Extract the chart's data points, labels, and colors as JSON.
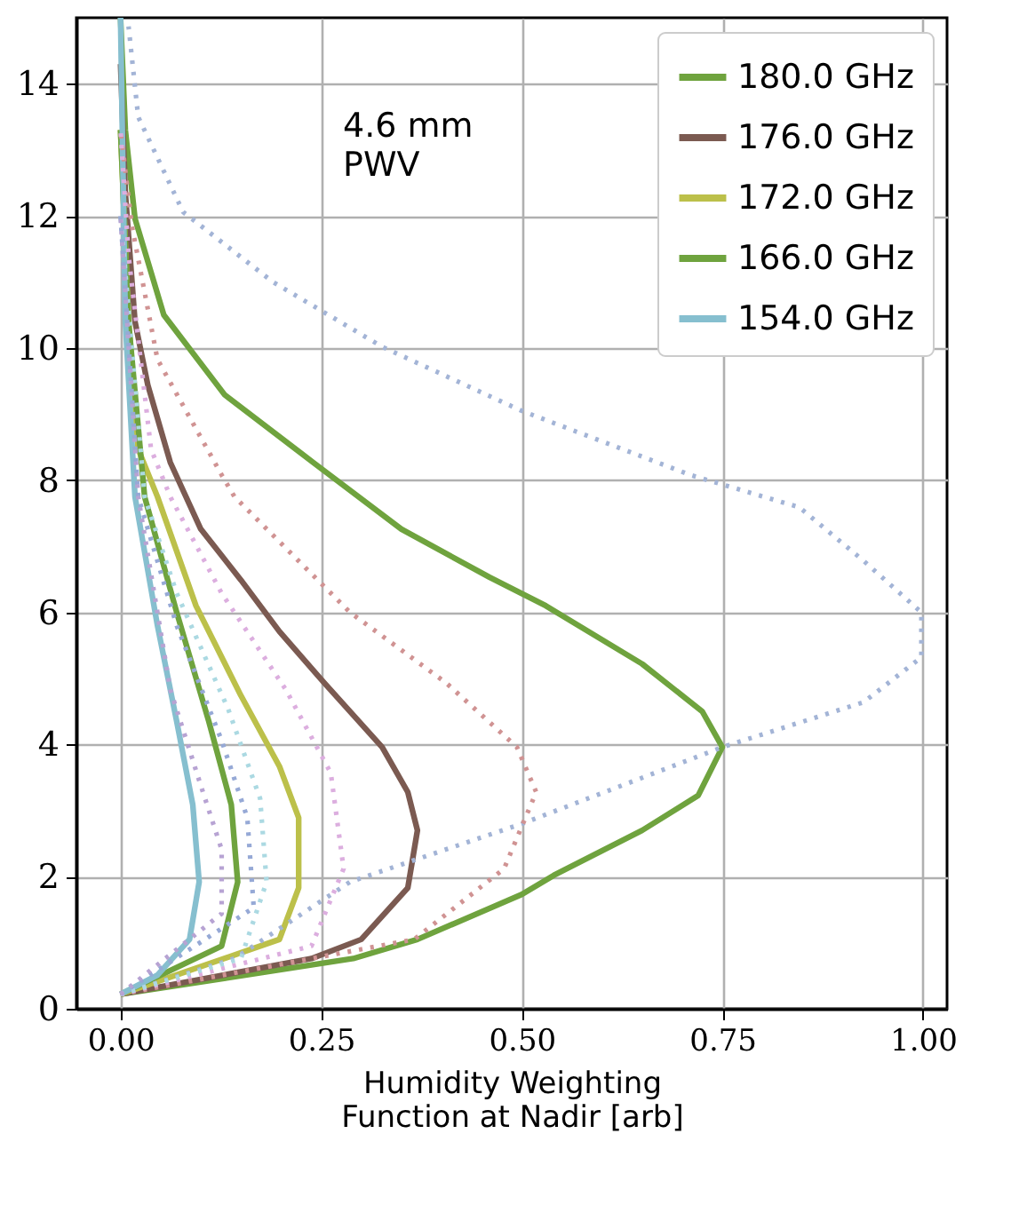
{
  "chart_data": {
    "type": "line",
    "xlabel": "Humidity Weighting\nFunction at Nadir [arb]",
    "annotations": [
      "4.6 mm\nPWV"
    ],
    "xlim": [
      -0.055,
      1.03
    ],
    "ylim": [
      0,
      15
    ],
    "xticks": [
      {
        "value": 0,
        "label": "0.00"
      },
      {
        "value": 0.25,
        "label": "0.25"
      },
      {
        "value": 0.5,
        "label": "0.50"
      },
      {
        "value": 0.75,
        "label": "0.75"
      },
      {
        "value": 1,
        "label": "1.00"
      }
    ],
    "yticks": [
      0,
      2,
      4,
      6,
      8,
      10,
      12,
      14
    ],
    "grid": true,
    "legend": "top right",
    "marker": "none",
    "series": [
      {
        "name": "180.0 GHz",
        "color": "#6fa33e",
        "line_style": "solid",
        "x": [
          0,
          0.29,
          0.37,
          0.5,
          0.54,
          0.65,
          0.72,
          0.75,
          0.725,
          0.65,
          0.53,
          0.46,
          0.35,
          0.24,
          0.13,
          0.054,
          0.018,
          0.006,
          0
        ],
        "values": [
          0.22,
          0.76,
          1.05,
          1.73,
          2.02,
          2.7,
          3.23,
          3.96,
          4.5,
          5.22,
          6.1,
          6.53,
          7.26,
          8.27,
          9.29,
          10.5,
          11.96,
          13.3,
          15
        ]
      },
      {
        "name": "176.0 GHz",
        "color": "#7b5a51",
        "line_style": "solid",
        "x": [
          0,
          0.238,
          0.3,
          0.358,
          0.37,
          0.358,
          0.326,
          0.254,
          0.198,
          0.15,
          0.1,
          0.062,
          0.034,
          0.018,
          0.006,
          0
        ],
        "values": [
          0.22,
          0.76,
          1.05,
          1.83,
          2.7,
          3.28,
          3.96,
          4.93,
          5.71,
          6.49,
          7.26,
          8.27,
          9.44,
          10.4,
          12.35,
          14.3
        ]
      },
      {
        "name": "172.0 GHz",
        "color": "#bcc04a",
        "line_style": "solid",
        "x": [
          0,
          0.198,
          0.222,
          0.222,
          0.198,
          0.15,
          0.094,
          0.046,
          0.022,
          0.01,
          0
        ],
        "values": [
          0.22,
          1.05,
          1.83,
          2.89,
          3.67,
          4.74,
          6.1,
          7.75,
          8.47,
          10.4,
          13.3
        ]
      },
      {
        "name": "166.0 GHz",
        "color": "#6fa33e",
        "line_style": "solid",
        "x": [
          0,
          0.126,
          0.146,
          0.138,
          0.11,
          0.07,
          0.03,
          0.01,
          0
        ],
        "values": [
          0.22,
          0.95,
          1.92,
          3.09,
          4.35,
          6,
          7.75,
          10.4,
          13.3
        ]
      },
      {
        "name": "154.0 GHz",
        "color": "#86bfcf",
        "line_style": "solid",
        "x": [
          0,
          0.046,
          0.086,
          0.098,
          0.09,
          0.07,
          0.046,
          0.018,
          0.006,
          0
        ],
        "values": [
          0.22,
          0.51,
          1.05,
          1.92,
          3.09,
          4.35,
          5.8,
          7.75,
          10.4,
          15
        ]
      },
      {
        "color": "#a3b4d6",
        "line_style": "dotted",
        "x": [
          0,
          0.142,
          0.286,
          0.5,
          0.75,
          0.926,
          0.998,
          0.998,
          0.926,
          0.846,
          0.71,
          0.5,
          0.326,
          0.19,
          0.078,
          0.022,
          0.01
        ],
        "values": [
          0.22,
          0.76,
          1.92,
          2.8,
          3.96,
          4.64,
          5.32,
          6,
          6.78,
          7.59,
          8.08,
          9.05,
          10.02,
          11,
          12.06,
          13.5,
          14.87
        ]
      },
      {
        "color": "#d09393",
        "line_style": "dotted",
        "x": [
          0,
          0.366,
          0.478,
          0.518,
          0.494,
          0.406,
          0.286,
          0.142,
          0.126,
          0.046,
          0.014,
          0
        ],
        "values": [
          0.22,
          1.05,
          2.12,
          3.28,
          3.96,
          4.93,
          6,
          7.75,
          8.08,
          9.83,
          11.86,
          13.3
        ]
      },
      {
        "color": "#dcaedf",
        "line_style": "dotted",
        "x": [
          0,
          0.238,
          0.278,
          0.262,
          0.206,
          0.126,
          0.062,
          0.038,
          0.01,
          0
        ],
        "values": [
          0.22,
          0.95,
          2.12,
          3.57,
          4.83,
          6.29,
          7.75,
          8.47,
          11.4,
          13.3
        ]
      },
      {
        "color": "#abd9e2",
        "line_style": "dotted",
        "x": [
          0,
          0.15,
          0.182,
          0.174,
          0.134,
          0.07,
          0.03,
          0
        ],
        "values": [
          0.22,
          0.76,
          1.92,
          3.18,
          4.54,
          6.29,
          7.75,
          12
        ]
      },
      {
        "color": "#96a9d6",
        "line_style": "dotted",
        "x": [
          0,
          0.166,
          0.158,
          0.126,
          0.07,
          0.022,
          0
        ],
        "values": [
          0.22,
          1.53,
          2.89,
          4.06,
          5.8,
          7.75,
          12
        ]
      },
      {
        "color": "#b7a3d3",
        "line_style": "dotted",
        "x": [
          0,
          0.126,
          0.126,
          0.1,
          0.062,
          0.022,
          0
        ],
        "values": [
          0.22,
          1.44,
          2.41,
          3.38,
          4.83,
          7.75,
          12
        ]
      }
    ]
  }
}
